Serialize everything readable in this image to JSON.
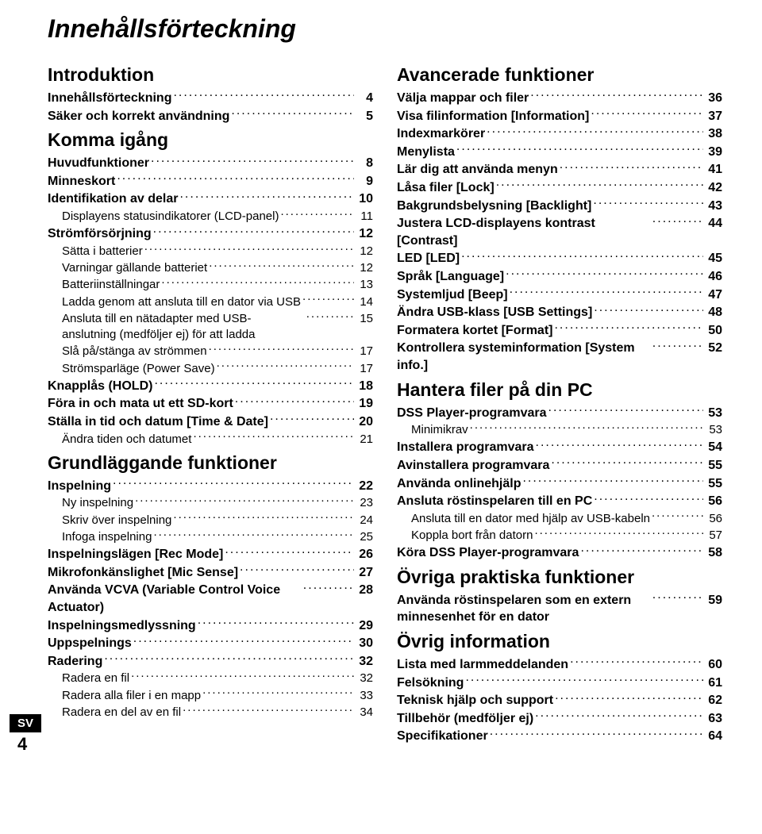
{
  "page_title": "Innehållsförteckning",
  "language_tag": "SV",
  "page_number": "4",
  "left": [
    {
      "type": "section",
      "label": "Introduktion"
    },
    {
      "type": "l1",
      "label": "Innehållsförteckning",
      "page": "4"
    },
    {
      "type": "l1",
      "label": "Säker och korrekt användning",
      "page": "5"
    },
    {
      "type": "section",
      "label": "Komma igång"
    },
    {
      "type": "l1",
      "label": "Huvudfunktioner",
      "page": "8"
    },
    {
      "type": "l1",
      "label": "Minneskort",
      "page": "9"
    },
    {
      "type": "l1",
      "label": "Identifikation av delar",
      "page": "10"
    },
    {
      "type": "l2",
      "label": "Displayens statusindikatorer (LCD-panel)",
      "page": "11"
    },
    {
      "type": "l1",
      "label": "Strömförsörjning",
      "page": "12"
    },
    {
      "type": "l2",
      "label": "Sätta i batterier",
      "page": "12"
    },
    {
      "type": "l2",
      "label": "Varningar gällande batteriet",
      "page": "12"
    },
    {
      "type": "l2",
      "label": "Batteriinställningar",
      "page": "13"
    },
    {
      "type": "l2",
      "label": "Ladda genom att ansluta till en dator via USB",
      "page": "14"
    },
    {
      "type": "l2",
      "label": "Ansluta till en nätadapter med USB-anslutning (medföljer ej) för att ladda",
      "page": "15"
    },
    {
      "type": "l2",
      "label": "Slå på/stänga av strömmen",
      "page": "17"
    },
    {
      "type": "l2",
      "label": "Strömsparläge (Power Save)",
      "page": "17"
    },
    {
      "type": "l1",
      "label": "Knapplås (HOLD)",
      "page": "18"
    },
    {
      "type": "l1",
      "label": "Föra in och mata ut ett SD-kort",
      "page": "19"
    },
    {
      "type": "l1",
      "label": "Ställa in tid och datum [Time & Date]",
      "page": "20"
    },
    {
      "type": "l2",
      "label": "Ändra tiden och datumet",
      "page": "21"
    },
    {
      "type": "section",
      "label": "Grundläggande funktioner"
    },
    {
      "type": "l1",
      "label": "Inspelning",
      "page": "22"
    },
    {
      "type": "l2",
      "label": "Ny inspelning",
      "page": "23"
    },
    {
      "type": "l2",
      "label": "Skriv över inspelning",
      "page": "24"
    },
    {
      "type": "l2",
      "label": "Infoga inspelning",
      "page": "25"
    },
    {
      "type": "l1",
      "label": "Inspelningslägen [Rec Mode]",
      "page": "26"
    },
    {
      "type": "l1",
      "label": "Mikrofonkänslighet [Mic Sense]",
      "page": "27"
    },
    {
      "type": "l1",
      "label": "Använda VCVA (Variable Control Voice Actuator)",
      "page": "28"
    },
    {
      "type": "l1",
      "label": "Inspelningsmedlyssning",
      "page": "29"
    },
    {
      "type": "l1",
      "label": "Uppspelnings",
      "page": "30"
    },
    {
      "type": "l1",
      "label": "Radering",
      "page": "32"
    },
    {
      "type": "l2",
      "label": "Radera en fil",
      "page": "32"
    },
    {
      "type": "l2",
      "label": "Radera alla filer i en mapp",
      "page": "33"
    },
    {
      "type": "l2",
      "label": "Radera en del av en fil",
      "page": "34"
    }
  ],
  "right": [
    {
      "type": "section",
      "label": "Avancerade funktioner"
    },
    {
      "type": "l1",
      "label": "Välja mappar och filer",
      "page": "36"
    },
    {
      "type": "l1",
      "label": "Visa filinformation [Information]",
      "page": "37"
    },
    {
      "type": "l1",
      "label": "Indexmarkörer",
      "page": "38"
    },
    {
      "type": "l1",
      "label": "Menylista",
      "page": "39"
    },
    {
      "type": "l1",
      "label": "Lär dig att använda menyn",
      "page": "41"
    },
    {
      "type": "l1",
      "label": "Låsa filer [Lock]",
      "page": "42"
    },
    {
      "type": "l1",
      "label": "Bakgrundsbelysning [Backlight]",
      "page": "43"
    },
    {
      "type": "l1",
      "label": "Justera LCD-displayens kontrast [Contrast]",
      "page": "44"
    },
    {
      "type": "l1",
      "label": "LED [LED]",
      "page": "45"
    },
    {
      "type": "l1",
      "label": "Språk [Language]",
      "page": "46"
    },
    {
      "type": "l1",
      "label": "Systemljud [Beep]",
      "page": "47"
    },
    {
      "type": "l1",
      "label": "Ändra USB-klass [USB Settings]",
      "page": "48"
    },
    {
      "type": "l1",
      "label": "Formatera kortet [Format]",
      "page": "50"
    },
    {
      "type": "l1",
      "label": "Kontrollera systeminformation [System info.]",
      "page": "52"
    },
    {
      "type": "section",
      "label": "Hantera filer på din PC"
    },
    {
      "type": "l1",
      "label": "DSS Player-programvara",
      "page": "53"
    },
    {
      "type": "l2",
      "label": "Minimikrav",
      "page": "53"
    },
    {
      "type": "l1",
      "label": "Installera programvara",
      "page": "54"
    },
    {
      "type": "l1",
      "label": "Avinstallera programvara",
      "page": "55"
    },
    {
      "type": "l1",
      "label": "Använda onlinehjälp",
      "page": "55"
    },
    {
      "type": "l1",
      "label": "Ansluta röstinspelaren till en PC",
      "page": "56"
    },
    {
      "type": "l2",
      "label": "Ansluta till en dator med hjälp av USB-kabeln",
      "page": "56"
    },
    {
      "type": "l2",
      "label": "Koppla bort från datorn",
      "page": "57"
    },
    {
      "type": "l1",
      "label": "Köra DSS Player-programvara",
      "page": "58"
    },
    {
      "type": "section",
      "label": "Övriga praktiska funktioner"
    },
    {
      "type": "l1",
      "label": "Använda röstinspelaren som en extern minnesenhet för en dator",
      "page": "59"
    },
    {
      "type": "section",
      "label": "Övrig information"
    },
    {
      "type": "l1",
      "label": "Lista med larmmeddelanden",
      "page": "60"
    },
    {
      "type": "l1",
      "label": "Felsökning",
      "page": "61"
    },
    {
      "type": "l1",
      "label": "Teknisk hjälp och support",
      "page": "62"
    },
    {
      "type": "l1",
      "label": "Tillbehör (medföljer ej)",
      "page": "63"
    },
    {
      "type": "l1",
      "label": "Specifikationer",
      "page": "64"
    }
  ]
}
